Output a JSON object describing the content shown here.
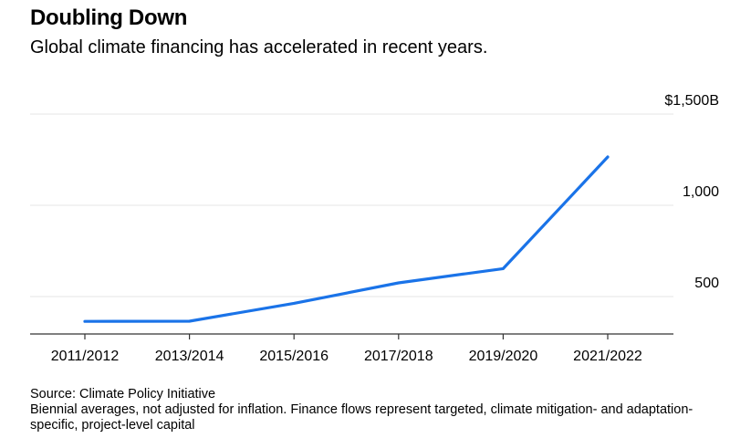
{
  "chart_data": {
    "type": "line",
    "title": "Doubling Down",
    "subtitle": "Global climate financing has accelerated in recent years.",
    "categories": [
      "2011/2012",
      "2013/2014",
      "2015/2016",
      "2017/2018",
      "2019/2020",
      "2021/2022"
    ],
    "series": [
      {
        "values": [
          364,
          365,
          463,
          575,
          653,
          1265
        ]
      }
    ],
    "y_ticks": [
      {
        "value": 500,
        "label": "500"
      },
      {
        "value": 1000,
        "label": "1,000"
      },
      {
        "value": 1500,
        "label": "$1,500B"
      }
    ],
    "ylim": [
      300,
      1500
    ],
    "grid": true,
    "line_color": "#1a73e8",
    "source": "Source: Climate Policy Initiative",
    "note": "Biennial averages, not adjusted for inflation. Finance flows represent targeted, climate mitigation- and adaptation-specific, project-level capital"
  }
}
